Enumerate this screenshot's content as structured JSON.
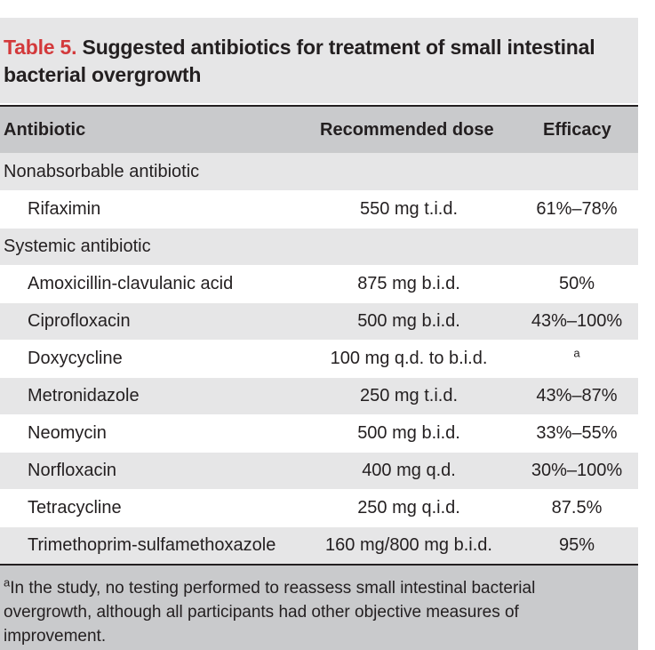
{
  "table": {
    "label": "Table 5.",
    "title": "Suggested antibiotics for treatment of small intestinal bacterial overgrowth",
    "columns": [
      "Antibiotic",
      "Recommended dose",
      "Efficacy"
    ],
    "groups": [
      {
        "name": "Nonabsorbable antibiotic",
        "rows": [
          {
            "antibiotic": "Rifaximin",
            "dose": "550 mg t.i.d.",
            "efficacy": "61%–78%"
          }
        ]
      },
      {
        "name": "Systemic antibiotic",
        "rows": [
          {
            "antibiotic": "Amoxicillin-clavulanic acid",
            "dose": "875 mg b.i.d.",
            "efficacy": "50%"
          },
          {
            "antibiotic": "Ciprofloxacin",
            "dose": "500 mg b.i.d.",
            "efficacy": "43%–100%"
          },
          {
            "antibiotic": "Doxycycline",
            "dose": "100 mg q.d. to b.i.d.",
            "efficacy": "",
            "efficacy_sup": "a"
          },
          {
            "antibiotic": "Metronidazole",
            "dose": "250 mg t.i.d.",
            "efficacy": "43%–87%"
          },
          {
            "antibiotic": "Neomycin",
            "dose": "500 mg b.i.d.",
            "efficacy": "33%–55%"
          },
          {
            "antibiotic": "Norfloxacin",
            "dose": "400 mg q.d.",
            "efficacy": "30%–100%"
          },
          {
            "antibiotic": "Tetracycline",
            "dose": "250 mg q.i.d.",
            "efficacy": "87.5%"
          },
          {
            "antibiotic": "Trimethoprim-sulfamethoxazole",
            "dose": "160 mg/800 mg b.i.d.",
            "efficacy": "95%"
          }
        ]
      }
    ],
    "footnote_marker": "a",
    "footnote": "In the study, no testing performed to reassess small intestinal bacterial overgrowth, although all participants had other objective measures of improvement."
  },
  "colors": {
    "title_label": "#d3393b",
    "header_bg": "#c9cacc",
    "alt_row_bg": "#e6e6e7"
  }
}
